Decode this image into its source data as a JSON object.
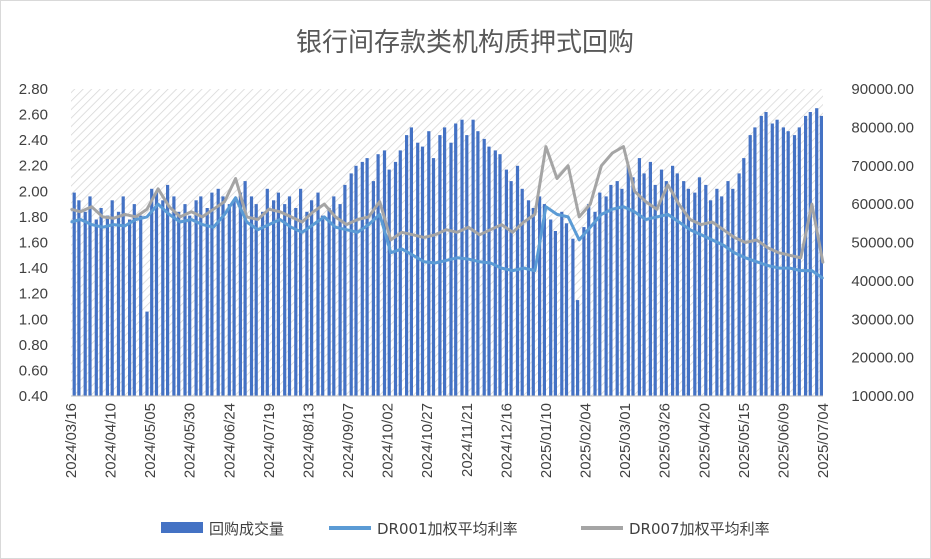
{
  "chart_data": {
    "type": "bar+line",
    "title": "银行间存款类机构质押式回购",
    "xlabel": "",
    "ylabel_left": "",
    "ylabel_right": "",
    "x_ticks": [
      "2024/03/16",
      "2024/04/10",
      "2024/05/05",
      "2024/05/30",
      "2024/06/24",
      "2024/07/19",
      "2024/08/13",
      "2024/09/07",
      "2024/10/02",
      "2024/10/27",
      "2024/11/21",
      "2024/12/16",
      "2025/01/10",
      "2025/02/04",
      "2025/03/01",
      "2025/03/26",
      "2025/04/20",
      "2025/05/15",
      "2025/06/09",
      "2025/07/04"
    ],
    "x_range": [
      "2024/03/16",
      "2025/07/04"
    ],
    "y_left": {
      "min": 0.4,
      "max": 2.8,
      "step": 0.2,
      "tick_labels": [
        "0.40",
        "0.60",
        "0.80",
        "1.00",
        "1.20",
        "1.40",
        "1.60",
        "1.80",
        "2.00",
        "2.20",
        "2.40",
        "2.60",
        "2.80"
      ]
    },
    "y_right": {
      "min": 10000,
      "max": 90000,
      "step": 10000,
      "tick_labels": [
        "10000.00",
        "20000.00",
        "30000.00",
        "40000.00",
        "50000.00",
        "60000.00",
        "70000.00",
        "80000.00",
        "90000.00"
      ]
    },
    "series": [
      {
        "name": "回购成交量",
        "type": "bar",
        "axis": "right",
        "color": "#4472c4",
        "x": [
          "2024/03/18",
          "2024/03/21",
          "2024/03/25",
          "2024/03/28",
          "2024/04/01",
          "2024/04/04",
          "2024/04/08",
          "2024/04/11",
          "2024/04/15",
          "2024/04/18",
          "2024/04/22",
          "2024/04/25",
          "2024/04/29",
          "2024/05/03",
          "2024/05/06",
          "2024/05/09",
          "2024/05/13",
          "2024/05/16",
          "2024/05/20",
          "2024/05/23",
          "2024/05/27",
          "2024/05/30",
          "2024/06/03",
          "2024/06/06",
          "2024/06/10",
          "2024/06/13",
          "2024/06/17",
          "2024/06/20",
          "2024/06/24",
          "2024/06/27",
          "2024/07/01",
          "2024/07/04",
          "2024/07/08",
          "2024/07/11",
          "2024/07/15",
          "2024/07/18",
          "2024/07/22",
          "2024/07/25",
          "2024/07/29",
          "2024/08/01",
          "2024/08/05",
          "2024/08/08",
          "2024/08/12",
          "2024/08/15",
          "2024/08/19",
          "2024/08/22",
          "2024/08/26",
          "2024/08/29",
          "2024/09/02",
          "2024/09/05",
          "2024/09/09",
          "2024/09/12",
          "2024/09/16",
          "2024/09/19",
          "2024/09/23",
          "2024/09/26",
          "2024/09/30",
          "2024/10/03",
          "2024/10/07",
          "2024/10/10",
          "2024/10/14",
          "2024/10/17",
          "2024/10/21",
          "2024/10/24",
          "2024/10/28",
          "2024/10/31",
          "2024/11/04",
          "2024/11/07",
          "2024/11/11",
          "2024/11/14",
          "2024/11/18",
          "2024/11/21",
          "2024/11/25",
          "2024/11/28",
          "2024/12/02",
          "2024/12/05",
          "2024/12/09",
          "2024/12/12",
          "2024/12/16",
          "2024/12/19",
          "2024/12/23",
          "2024/12/26",
          "2024/12/30",
          "2025/01/02",
          "2025/01/06",
          "2025/01/09",
          "2025/01/13",
          "2025/01/16",
          "2025/01/20",
          "2025/01/23",
          "2025/01/27",
          "2025/01/30",
          "2025/02/03",
          "2025/02/06",
          "2025/02/10",
          "2025/02/13",
          "2025/02/17",
          "2025/02/20",
          "2025/02/24",
          "2025/02/27",
          "2025/03/03",
          "2025/03/06",
          "2025/03/10",
          "2025/03/13",
          "2025/03/17",
          "2025/03/20",
          "2025/03/24",
          "2025/03/27",
          "2025/03/31",
          "2025/04/03",
          "2025/04/07",
          "2025/04/10",
          "2025/04/14",
          "2025/04/17",
          "2025/04/21",
          "2025/04/24",
          "2025/04/28",
          "2025/05/01",
          "2025/05/05",
          "2025/05/08",
          "2025/05/12",
          "2025/05/15",
          "2025/05/19",
          "2025/05/22",
          "2025/05/26",
          "2025/05/29",
          "2025/06/02",
          "2025/06/05",
          "2025/06/09",
          "2025/06/12",
          "2025/06/16",
          "2025/06/19",
          "2025/06/23",
          "2025/06/26",
          "2025/06/30",
          "2025/07/03"
        ],
        "values": [
          63000,
          61000,
          58000,
          62000,
          56000,
          59000,
          57000,
          61000,
          58000,
          62000,
          56000,
          60000,
          57000,
          32000,
          64000,
          63000,
          61000,
          65000,
          62000,
          58000,
          60000,
          57000,
          61000,
          62000,
          59000,
          63000,
          64000,
          62000,
          60000,
          61000,
          63000,
          66000,
          62000,
          60000,
          58000,
          64000,
          61000,
          63000,
          60000,
          62000,
          59000,
          64000,
          58000,
          61000,
          63000,
          57000,
          59000,
          62000,
          60000,
          65000,
          68000,
          70000,
          71000,
          72000,
          66000,
          73000,
          74000,
          69000,
          71000,
          74000,
          78000,
          80000,
          76000,
          75000,
          79000,
          72000,
          78000,
          80000,
          76000,
          81000,
          82000,
          78000,
          82000,
          79000,
          77000,
          75000,
          74000,
          73000,
          69000,
          66000,
          70000,
          64000,
          61000,
          59000,
          62000,
          60000,
          56000,
          53000,
          58000,
          55000,
          51000,
          35000,
          54000,
          60000,
          58000,
          63000,
          62000,
          65000,
          66000,
          64000,
          70000,
          67000,
          72000,
          68000,
          71000,
          65000,
          69000,
          66000,
          70000,
          68000,
          66000,
          64000,
          63000,
          67000,
          65000,
          61000,
          64000,
          62000,
          66000,
          64000,
          68000,
          72000,
          78000,
          80000,
          83000,
          84000,
          81000,
          82000,
          80000,
          79000,
          78000,
          80000,
          83000,
          84000,
          85000,
          83000
        ]
      },
      {
        "name": "DR001加权平均利率",
        "type": "line",
        "axis": "left",
        "color": "#5b9bd5",
        "x": [
          "2024/03/16",
          "2024/03/22",
          "2024/03/29",
          "2024/04/05",
          "2024/04/12",
          "2024/04/19",
          "2024/04/26",
          "2024/05/03",
          "2024/05/10",
          "2024/05/17",
          "2024/05/24",
          "2024/05/31",
          "2024/06/07",
          "2024/06/14",
          "2024/06/21",
          "2024/06/28",
          "2024/07/05",
          "2024/07/12",
          "2024/07/19",
          "2024/07/26",
          "2024/08/02",
          "2024/08/09",
          "2024/08/16",
          "2024/08/23",
          "2024/08/30",
          "2024/09/06",
          "2024/09/13",
          "2024/09/20",
          "2024/09/27",
          "2024/10/04",
          "2024/10/11",
          "2024/10/18",
          "2024/10/25",
          "2024/11/01",
          "2024/11/08",
          "2024/11/15",
          "2024/11/22",
          "2024/11/29",
          "2024/12/06",
          "2024/12/13",
          "2024/12/20",
          "2024/12/27",
          "2025/01/03",
          "2025/01/10",
          "2025/01/17",
          "2025/01/24",
          "2025/01/31",
          "2025/02/07",
          "2025/02/14",
          "2025/02/21",
          "2025/02/28",
          "2025/03/07",
          "2025/03/14",
          "2025/03/21",
          "2025/03/28",
          "2025/04/04",
          "2025/04/11",
          "2025/04/18",
          "2025/04/25",
          "2025/05/02",
          "2025/05/09",
          "2025/05/16",
          "2025/05/23",
          "2025/05/30",
          "2025/06/06",
          "2025/06/13",
          "2025/06/20",
          "2025/06/27",
          "2025/07/04"
        ],
        "values": [
          1.76,
          1.78,
          1.74,
          1.72,
          1.74,
          1.73,
          1.78,
          1.8,
          1.9,
          1.82,
          1.76,
          1.78,
          1.74,
          1.72,
          1.82,
          1.95,
          1.76,
          1.7,
          1.74,
          1.78,
          1.72,
          1.68,
          1.74,
          1.8,
          1.72,
          1.7,
          1.68,
          1.74,
          1.82,
          1.52,
          1.55,
          1.5,
          1.45,
          1.44,
          1.46,
          1.48,
          1.47,
          1.45,
          1.44,
          1.4,
          1.38,
          1.4,
          1.38,
          1.88,
          1.82,
          1.8,
          1.62,
          1.72,
          1.82,
          1.86,
          1.88,
          1.84,
          1.78,
          1.8,
          1.82,
          1.76,
          1.7,
          1.66,
          1.62,
          1.58,
          1.52,
          1.48,
          1.45,
          1.42,
          1.4,
          1.4,
          1.38,
          1.38,
          1.32
        ]
      },
      {
        "name": "DR007加权平均利率",
        "type": "line",
        "axis": "left",
        "color": "#a5a5a5",
        "x": [
          "2024/03/16",
          "2024/03/22",
          "2024/03/29",
          "2024/04/05",
          "2024/04/12",
          "2024/04/19",
          "2024/04/26",
          "2024/05/03",
          "2024/05/10",
          "2024/05/17",
          "2024/05/24",
          "2024/05/31",
          "2024/06/07",
          "2024/06/14",
          "2024/06/21",
          "2024/06/28",
          "2024/07/05",
          "2024/07/12",
          "2024/07/19",
          "2024/07/26",
          "2024/08/02",
          "2024/08/09",
          "2024/08/16",
          "2024/08/23",
          "2024/08/30",
          "2024/09/06",
          "2024/09/13",
          "2024/09/20",
          "2024/09/27",
          "2024/10/04",
          "2024/10/11",
          "2024/10/18",
          "2024/10/25",
          "2024/11/01",
          "2024/11/08",
          "2024/11/15",
          "2024/11/22",
          "2024/11/29",
          "2024/12/06",
          "2024/12/13",
          "2024/12/20",
          "2024/12/27",
          "2025/01/03",
          "2025/01/10",
          "2025/01/17",
          "2025/01/24",
          "2025/01/31",
          "2025/02/07",
          "2025/02/14",
          "2025/02/21",
          "2025/02/28",
          "2025/03/07",
          "2025/03/14",
          "2025/03/21",
          "2025/03/28",
          "2025/04/04",
          "2025/04/11",
          "2025/04/18",
          "2025/04/25",
          "2025/05/02",
          "2025/05/09",
          "2025/05/16",
          "2025/05/23",
          "2025/05/30",
          "2025/06/06",
          "2025/06/13",
          "2025/06/20",
          "2025/06/27",
          "2025/07/04"
        ],
        "values": [
          1.86,
          1.84,
          1.88,
          1.8,
          1.79,
          1.82,
          1.8,
          1.86,
          2.02,
          1.88,
          1.8,
          1.84,
          1.8,
          1.86,
          1.92,
          2.1,
          1.8,
          1.78,
          1.86,
          1.84,
          1.8,
          1.76,
          1.84,
          1.9,
          1.8,
          1.74,
          1.78,
          1.8,
          1.92,
          1.62,
          1.68,
          1.66,
          1.64,
          1.66,
          1.7,
          1.68,
          1.72,
          1.66,
          1.7,
          1.74,
          1.68,
          1.76,
          1.82,
          2.35,
          2.1,
          2.2,
          1.8,
          1.9,
          2.2,
          2.3,
          2.35,
          2.0,
          1.92,
          1.86,
          2.05,
          1.9,
          1.78,
          1.74,
          1.76,
          1.7,
          1.64,
          1.6,
          1.62,
          1.56,
          1.52,
          1.5,
          1.48,
          1.9,
          1.44
        ]
      }
    ],
    "legend": {
      "position": "bottom",
      "entries": [
        "回购成交量",
        "DR001加权平均利率",
        "DR007加权平均利率"
      ]
    },
    "grid": false,
    "plot_background": "hatched"
  }
}
